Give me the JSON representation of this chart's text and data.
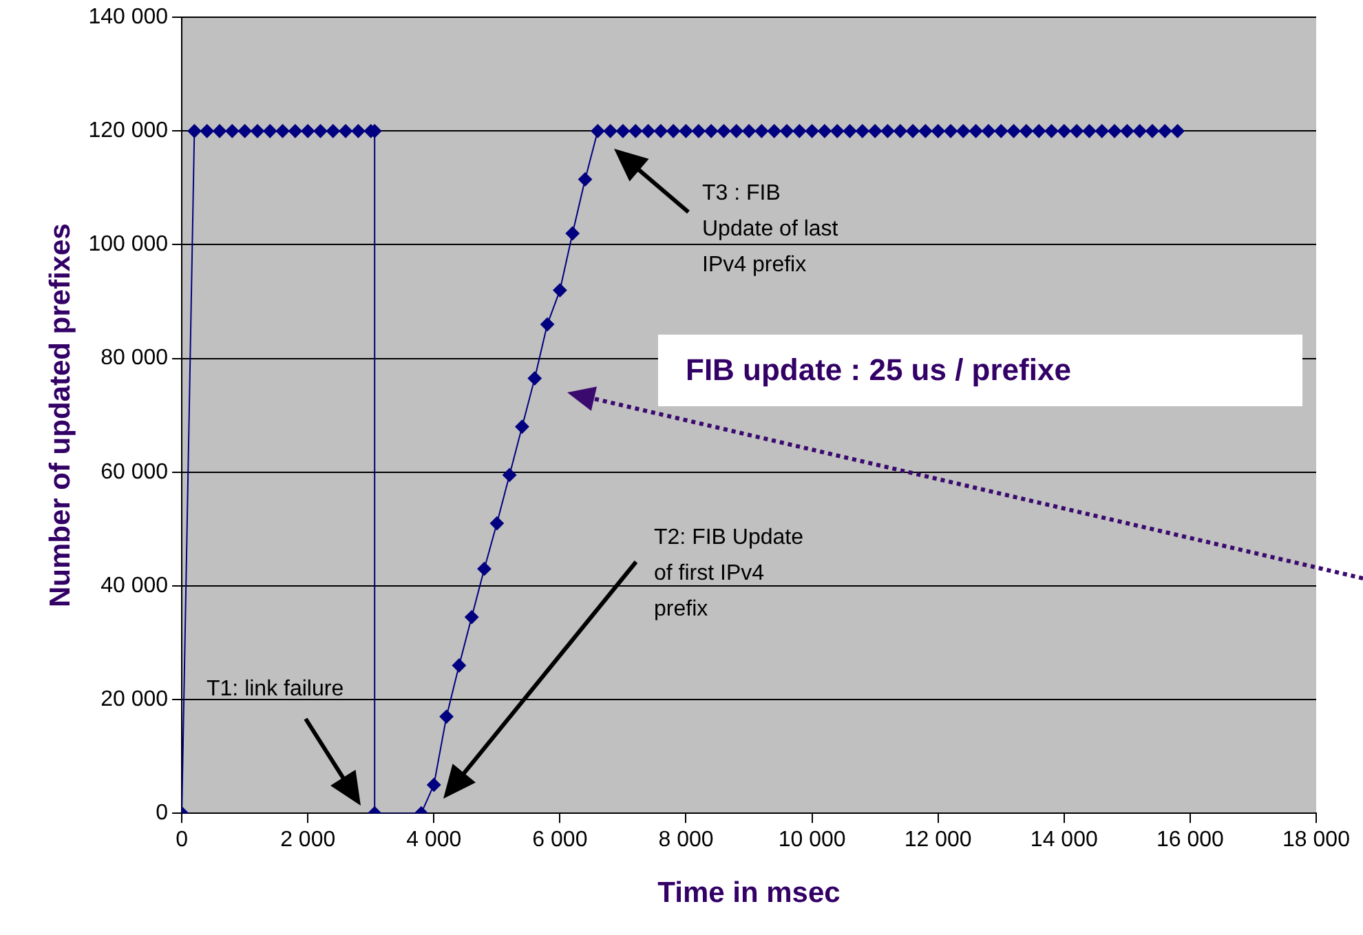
{
  "chart_data": {
    "type": "line",
    "xlabel": "Time in msec",
    "ylabel": "Number of updated prefixes",
    "x": [
      0,
      200,
      400,
      600,
      800,
      1000,
      1200,
      1400,
      1600,
      1800,
      2000,
      2200,
      2400,
      2600,
      2800,
      3000,
      3060,
      3060,
      3800,
      4000,
      4200,
      4400,
      4600,
      4800,
      5000,
      5200,
      5400,
      5600,
      5800,
      6000,
      6200,
      6400,
      6600,
      6800,
      7000,
      7200,
      7400,
      7600,
      7800,
      8000,
      8200,
      8400,
      8600,
      8800,
      9000,
      9200,
      9400,
      9600,
      9800,
      10000,
      10200,
      10400,
      10600,
      10800,
      11000,
      11200,
      11400,
      11600,
      11800,
      12000,
      12200,
      12400,
      12600,
      12800,
      13000,
      13200,
      13400,
      13600,
      13800,
      14000,
      14200,
      14400,
      14600,
      14800,
      15000,
      15200,
      15400,
      15600,
      15800
    ],
    "series": [
      {
        "color": "#000080",
        "values": [
          0,
          120000,
          120000,
          120000,
          120000,
          120000,
          120000,
          120000,
          120000,
          120000,
          120000,
          120000,
          120000,
          120000,
          120000,
          120000,
          120000,
          0,
          0,
          5000,
          17000,
          26000,
          34500,
          43000,
          51000,
          59500,
          68000,
          76500,
          86000,
          92000,
          102000,
          111500,
          120000,
          120000,
          120000,
          120000,
          120000,
          120000,
          120000,
          120000,
          120000,
          120000,
          120000,
          120000,
          120000,
          120000,
          120000,
          120000,
          120000,
          120000,
          120000,
          120000,
          120000,
          120000,
          120000,
          120000,
          120000,
          120000,
          120000,
          120000,
          120000,
          120000,
          120000,
          120000,
          120000,
          120000,
          120000,
          120000,
          120000,
          120000,
          120000,
          120000,
          120000,
          120000,
          120000,
          120000,
          120000,
          120000,
          120000
        ]
      }
    ],
    "xlim": [
      0,
      18000
    ],
    "ylim": [
      0,
      140000
    ],
    "xticks": [
      0,
      {
        "value": 2000,
        "label": "2 000"
      },
      {
        "value": 4000,
        "label": "4 000"
      },
      {
        "value": 6000,
        "label": "6 000"
      },
      {
        "value": 8000,
        "label": "8 000"
      },
      {
        "value": 10000,
        "label": "10 000"
      },
      {
        "value": 12000,
        "label": "12 000"
      },
      {
        "value": 14000,
        "label": "14 000"
      },
      {
        "value": 16000,
        "label": "16 000"
      },
      {
        "value": 18000,
        "label": "18 000"
      }
    ],
    "yticks": [
      0,
      {
        "value": 20000,
        "label": "20 000"
      },
      {
        "value": 40000,
        "label": "40 000"
      },
      {
        "value": 60000,
        "label": "60 000"
      },
      {
        "value": 80000,
        "label": "80 000"
      },
      {
        "value": 100000,
        "label": "100 000"
      },
      {
        "value": 120000,
        "label": "120 000"
      },
      {
        "value": 140000,
        "label": "140 000"
      }
    ],
    "grid": "y",
    "marker": "diamond",
    "line_style": "solid",
    "legend": false,
    "annotations": [
      "T1: link failure",
      "T2: FIB Update\nof first IPv4\nprefix",
      "T3 : FIB\nUpdate of last\nIPv4 prefix",
      "FIB update : 25 us / prefixe"
    ]
  }
}
